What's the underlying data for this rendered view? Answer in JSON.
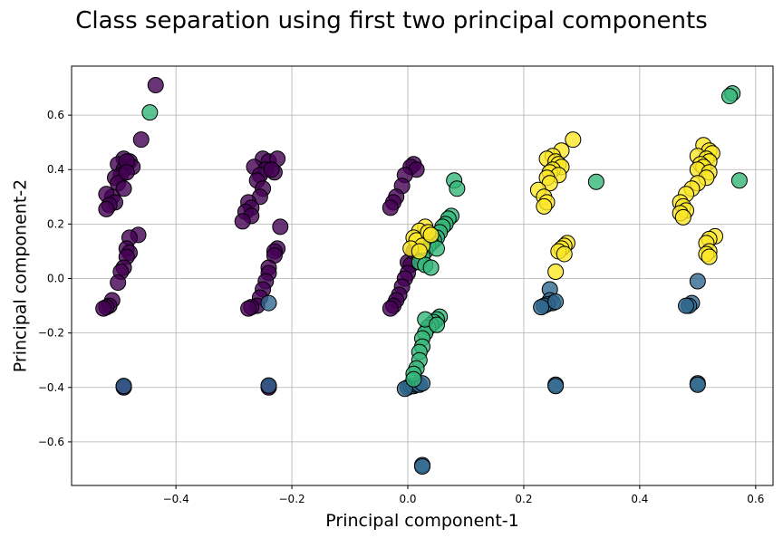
{
  "chart_data": {
    "type": "scatter",
    "title": "Class separation using first two principal components",
    "xlabel": "Principal component-1",
    "ylabel": "Principal component-2",
    "xlim": [
      -0.58,
      0.63
    ],
    "ylim": [
      -0.76,
      0.78
    ],
    "xticks": [
      -0.4,
      -0.2,
      0.0,
      0.2,
      0.4,
      0.6
    ],
    "yticks": [
      -0.6,
      -0.4,
      -0.2,
      0.0,
      0.2,
      0.4,
      0.6
    ],
    "xtick_labels": [
      "−0.4",
      "−0.2",
      "0.0",
      "0.2",
      "0.4",
      "0.6"
    ],
    "ytick_labels": [
      "−0.6",
      "−0.4",
      "−0.2",
      "0.0",
      "0.2",
      "0.4",
      "0.6"
    ],
    "grid": true,
    "colors": {
      "purple": "#440154",
      "blue": "#31688e",
      "green": "#35b779",
      "yellow": "#fde725"
    },
    "series": [
      {
        "color": "#440154",
        "points": [
          [
            -0.435,
            0.71
          ],
          [
            -0.46,
            0.51
          ],
          [
            -0.49,
            0.44
          ],
          [
            -0.48,
            0.43
          ],
          [
            -0.5,
            0.42
          ],
          [
            -0.49,
            0.4
          ],
          [
            -0.475,
            0.41
          ],
          [
            -0.495,
            0.38
          ],
          [
            -0.505,
            0.37
          ],
          [
            -0.5,
            0.35
          ],
          [
            -0.49,
            0.33
          ],
          [
            -0.51,
            0.3
          ],
          [
            -0.52,
            0.31
          ],
          [
            -0.505,
            0.28
          ],
          [
            -0.515,
            0.27
          ],
          [
            -0.52,
            0.255
          ],
          [
            -0.485,
            0.43
          ],
          [
            -0.485,
            0.39
          ],
          [
            -0.465,
            0.16
          ],
          [
            -0.48,
            0.15
          ],
          [
            -0.485,
            0.11
          ],
          [
            -0.48,
            0.095
          ],
          [
            -0.485,
            0.08
          ],
          [
            -0.49,
            0.04
          ],
          [
            -0.495,
            0.025
          ],
          [
            -0.5,
            -0.015
          ],
          [
            -0.51,
            -0.08
          ],
          [
            -0.515,
            -0.1
          ],
          [
            -0.52,
            -0.105
          ],
          [
            -0.525,
            -0.11
          ],
          [
            -0.49,
            -0.395
          ],
          [
            -0.49,
            -0.4
          ],
          [
            -0.25,
            0.44
          ],
          [
            -0.24,
            0.43
          ],
          [
            -0.265,
            0.41
          ],
          [
            -0.245,
            0.4
          ],
          [
            -0.23,
            0.39
          ],
          [
            -0.255,
            0.38
          ],
          [
            -0.26,
            0.36
          ],
          [
            -0.25,
            0.33
          ],
          [
            -0.255,
            0.3
          ],
          [
            -0.275,
            0.28
          ],
          [
            -0.27,
            0.26
          ],
          [
            -0.28,
            0.245
          ],
          [
            -0.27,
            0.23
          ],
          [
            -0.285,
            0.21
          ],
          [
            -0.225,
            0.44
          ],
          [
            -0.235,
            0.4
          ],
          [
            -0.22,
            0.19
          ],
          [
            -0.225,
            0.11
          ],
          [
            -0.23,
            0.1
          ],
          [
            -0.23,
            0.085
          ],
          [
            -0.24,
            0.04
          ],
          [
            -0.24,
            0.02
          ],
          [
            -0.245,
            -0.01
          ],
          [
            -0.25,
            -0.04
          ],
          [
            -0.255,
            -0.07
          ],
          [
            -0.26,
            -0.1
          ],
          [
            -0.27,
            -0.105
          ],
          [
            -0.275,
            -0.11
          ],
          [
            -0.24,
            -0.395
          ],
          [
            -0.24,
            -0.4
          ],
          [
            0.01,
            0.42
          ],
          [
            0.005,
            0.41
          ],
          [
            0.015,
            0.4
          ],
          [
            -0.005,
            0.38
          ],
          [
            -0.01,
            0.34
          ],
          [
            -0.02,
            0.3
          ],
          [
            -0.025,
            0.28
          ],
          [
            -0.03,
            0.26
          ],
          [
            0.0,
            0.06
          ],
          [
            0.005,
            0.05
          ],
          [
            0.0,
            0.02
          ],
          [
            -0.005,
            0.0
          ],
          [
            -0.01,
            -0.03
          ],
          [
            -0.015,
            -0.06
          ],
          [
            -0.02,
            -0.08
          ],
          [
            -0.025,
            -0.1
          ],
          [
            -0.03,
            -0.11
          ],
          [
            0.01,
            0.1
          ]
        ]
      },
      {
        "color": "#31688e",
        "points": [
          [
            -0.24,
            -0.09
          ],
          [
            -0.49,
            -0.395
          ],
          [
            -0.24,
            -0.393
          ],
          [
            0.0,
            -0.4
          ],
          [
            0.005,
            -0.395
          ],
          [
            0.01,
            -0.395
          ],
          [
            0.015,
            -0.39
          ],
          [
            0.02,
            -0.39
          ],
          [
            0.025,
            -0.385
          ],
          [
            -0.005,
            -0.405
          ],
          [
            0.025,
            -0.685
          ],
          [
            0.025,
            -0.69
          ],
          [
            0.245,
            -0.04
          ],
          [
            0.245,
            -0.08
          ],
          [
            0.25,
            -0.09
          ],
          [
            0.24,
            -0.095
          ],
          [
            0.235,
            -0.1
          ],
          [
            0.23,
            -0.105
          ],
          [
            0.255,
            -0.085
          ],
          [
            0.255,
            -0.39
          ],
          [
            0.255,
            -0.395
          ],
          [
            0.5,
            -0.01
          ],
          [
            0.49,
            -0.09
          ],
          [
            0.485,
            -0.1
          ],
          [
            0.48,
            -0.1
          ],
          [
            0.5,
            -0.385
          ],
          [
            0.5,
            -0.39
          ]
        ]
      },
      {
        "color": "#35b779",
        "points": [
          [
            -0.445,
            0.61
          ],
          [
            0.56,
            0.68
          ],
          [
            0.555,
            0.67
          ],
          [
            0.572,
            0.36
          ],
          [
            0.325,
            0.355
          ],
          [
            0.08,
            0.36
          ],
          [
            0.085,
            0.33
          ],
          [
            0.075,
            0.23
          ],
          [
            0.07,
            0.22
          ],
          [
            0.065,
            0.2
          ],
          [
            0.06,
            0.19
          ],
          [
            0.055,
            0.17
          ],
          [
            0.05,
            0.15
          ],
          [
            0.045,
            0.14
          ],
          [
            0.04,
            0.13
          ],
          [
            0.035,
            0.12
          ],
          [
            0.03,
            0.1
          ],
          [
            0.025,
            0.08
          ],
          [
            0.02,
            0.06
          ],
          [
            0.03,
            0.05
          ],
          [
            0.04,
            0.04
          ],
          [
            0.05,
            0.11
          ],
          [
            0.055,
            -0.14
          ],
          [
            0.05,
            -0.15
          ],
          [
            0.045,
            -0.16
          ],
          [
            0.04,
            -0.17
          ],
          [
            0.035,
            -0.18
          ],
          [
            0.03,
            -0.2
          ],
          [
            0.025,
            -0.22
          ],
          [
            0.025,
            -0.25
          ],
          [
            0.02,
            -0.27
          ],
          [
            0.02,
            -0.3
          ],
          [
            0.015,
            -0.33
          ],
          [
            0.01,
            -0.35
          ],
          [
            0.01,
            -0.37
          ],
          [
            0.03,
            -0.15
          ],
          [
            0.05,
            -0.17
          ]
        ]
      },
      {
        "color": "#fde725",
        "points": [
          [
            0.03,
            0.19
          ],
          [
            0.02,
            0.175
          ],
          [
            0.01,
            0.15
          ],
          [
            0.015,
            0.14
          ],
          [
            0.025,
            0.12
          ],
          [
            0.005,
            0.11
          ],
          [
            0.02,
            0.1
          ],
          [
            0.035,
            0.17
          ],
          [
            0.04,
            0.16
          ],
          [
            0.285,
            0.51
          ],
          [
            0.265,
            0.47
          ],
          [
            0.25,
            0.45
          ],
          [
            0.24,
            0.44
          ],
          [
            0.255,
            0.43
          ],
          [
            0.26,
            0.42
          ],
          [
            0.265,
            0.41
          ],
          [
            0.25,
            0.4
          ],
          [
            0.245,
            0.39
          ],
          [
            0.26,
            0.38
          ],
          [
            0.24,
            0.37
          ],
          [
            0.245,
            0.35
          ],
          [
            0.225,
            0.325
          ],
          [
            0.235,
            0.3
          ],
          [
            0.24,
            0.28
          ],
          [
            0.235,
            0.265
          ],
          [
            0.275,
            0.13
          ],
          [
            0.27,
            0.12
          ],
          [
            0.265,
            0.11
          ],
          [
            0.26,
            0.1
          ],
          [
            0.27,
            0.09
          ],
          [
            0.255,
            0.025
          ],
          [
            0.51,
            0.49
          ],
          [
            0.52,
            0.47
          ],
          [
            0.525,
            0.46
          ],
          [
            0.5,
            0.45
          ],
          [
            0.515,
            0.44
          ],
          [
            0.52,
            0.43
          ],
          [
            0.505,
            0.42
          ],
          [
            0.51,
            0.41
          ],
          [
            0.5,
            0.4
          ],
          [
            0.52,
            0.39
          ],
          [
            0.515,
            0.37
          ],
          [
            0.5,
            0.35
          ],
          [
            0.49,
            0.33
          ],
          [
            0.48,
            0.31
          ],
          [
            0.47,
            0.28
          ],
          [
            0.475,
            0.265
          ],
          [
            0.48,
            0.25
          ],
          [
            0.47,
            0.24
          ],
          [
            0.475,
            0.225
          ],
          [
            0.53,
            0.155
          ],
          [
            0.52,
            0.145
          ],
          [
            0.515,
            0.13
          ],
          [
            0.52,
            0.1
          ],
          [
            0.515,
            0.09
          ],
          [
            0.52,
            0.08
          ]
        ]
      }
    ]
  }
}
